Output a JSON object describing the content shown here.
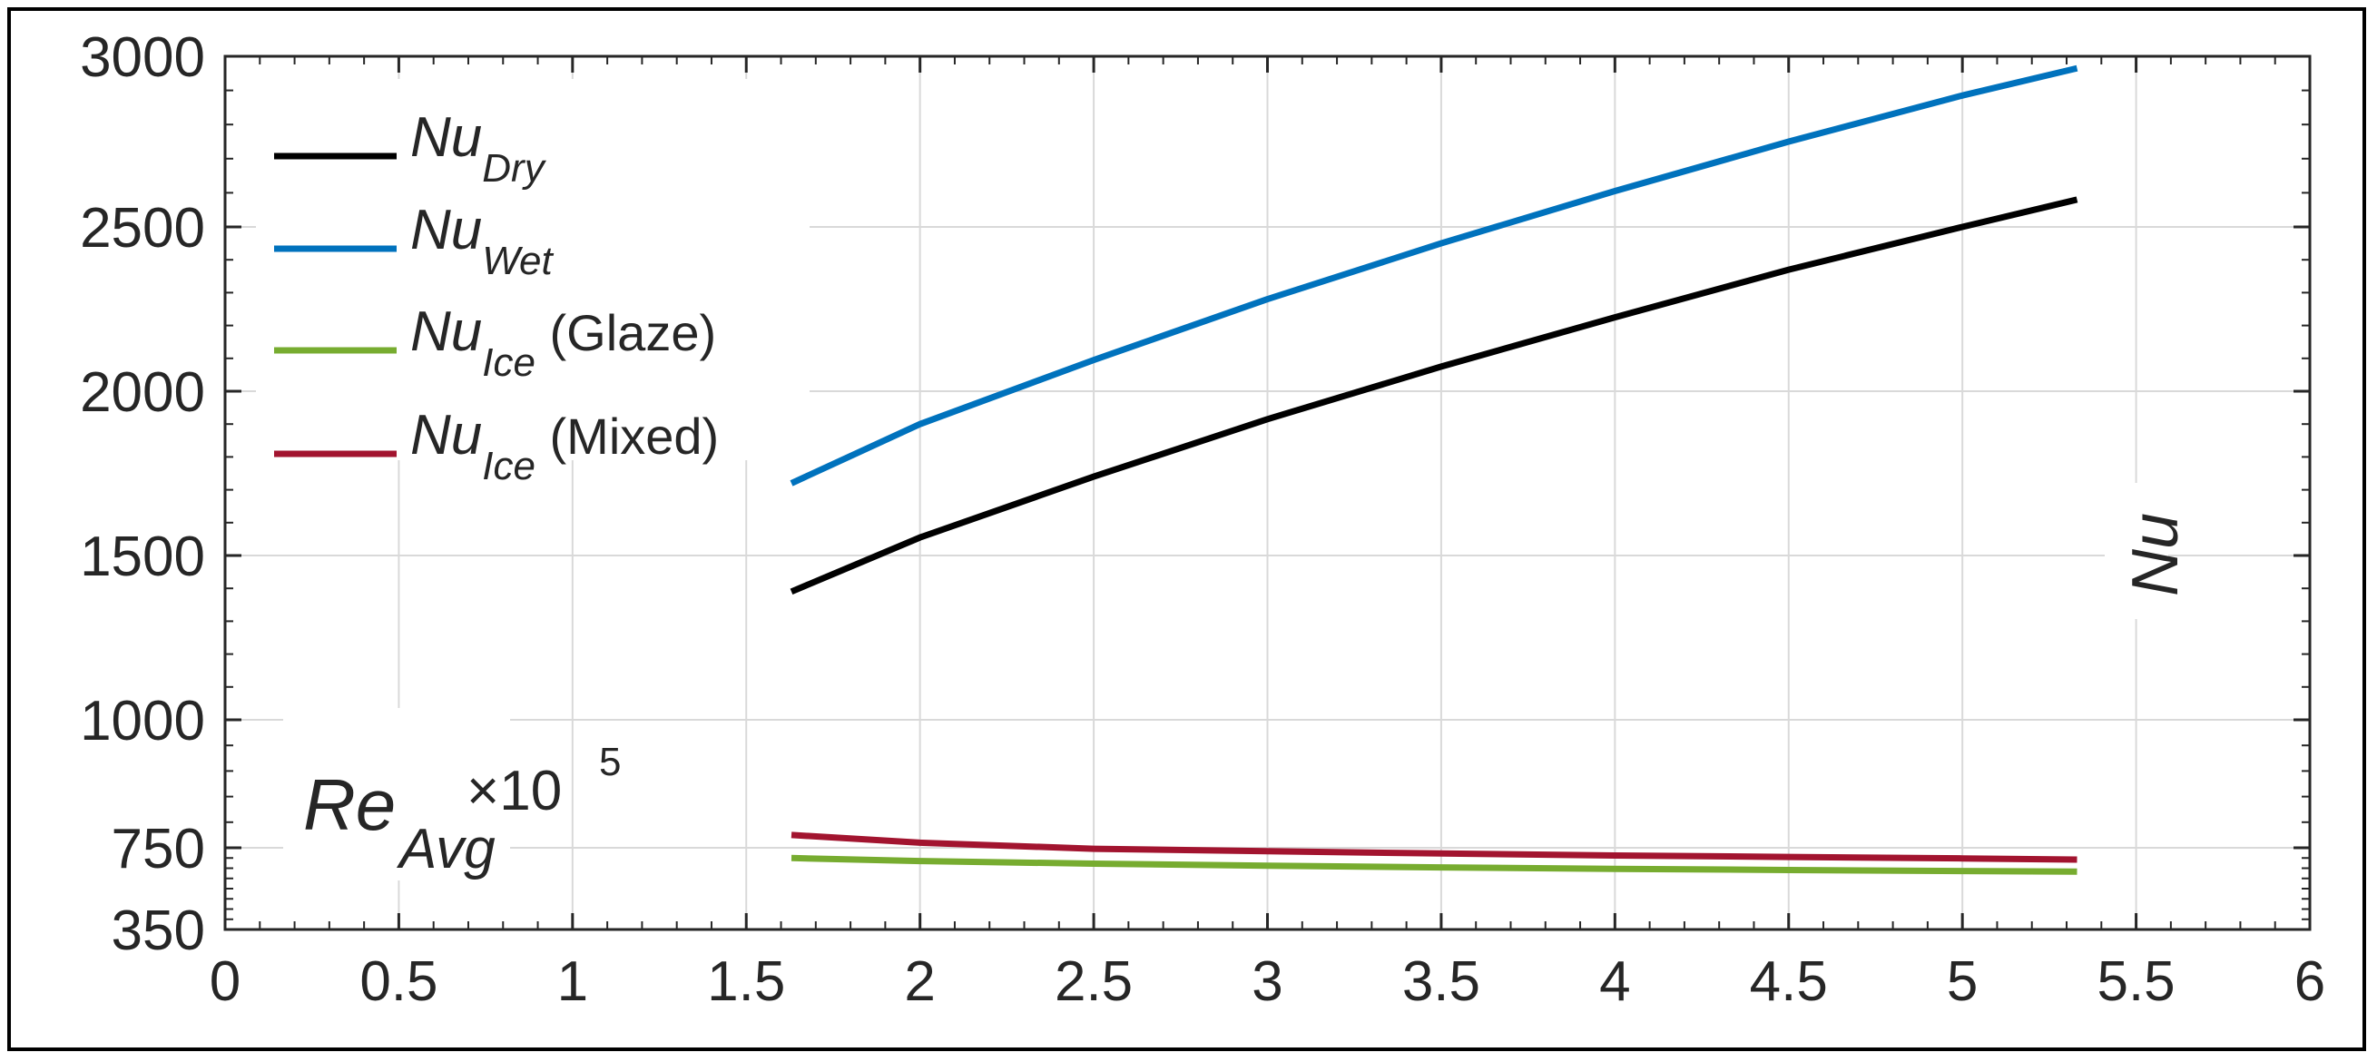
{
  "chart_data": {
    "type": "line",
    "x_ticks": [
      "0",
      "0.5",
      "1",
      "1.5",
      "2",
      "2.5",
      "3",
      "3.5",
      "4",
      "4.5",
      "5",
      "5.5",
      "6"
    ],
    "y_ticks": [
      "350",
      "750",
      "1000",
      "1500",
      "2000",
      "2500",
      "3000"
    ],
    "xlim": [
      0,
      6
    ],
    "ylim": [
      350,
      3000
    ],
    "grid": true,
    "legend_position": "top-left",
    "xlabel": {
      "main": "Re",
      "sub": "Avg",
      "multiplier": "×10",
      "exponent": "5"
    },
    "ylabel": "Nu",
    "series": [
      {
        "name": "Nu",
        "sub": "Dry",
        "suffix": "",
        "color": "#000000",
        "x": [
          1.63,
          2.0,
          2.5,
          3.0,
          3.5,
          4.0,
          4.5,
          5.0,
          5.33
        ],
        "y": [
          1390,
          1555,
          1740,
          1915,
          2075,
          2225,
          2370,
          2500,
          2580
        ]
      },
      {
        "name": "Nu",
        "sub": "Wet",
        "suffix": "",
        "color": "#0072BD",
        "x": [
          1.63,
          2.0,
          2.5,
          3.0,
          3.5,
          4.0,
          4.5,
          5.0,
          5.33
        ],
        "y": [
          1720,
          1900,
          2095,
          2280,
          2450,
          2605,
          2750,
          2885,
          2965
        ]
      },
      {
        "name": "Nu",
        "sub": "Ice",
        "suffix": " (Glaze)",
        "color": "#77AC30",
        "x": [
          1.63,
          2.0,
          2.5,
          3.0,
          3.5,
          4.0,
          4.5,
          5.0,
          5.33
        ],
        "y": [
          700,
          685,
          672,
          662,
          654,
          647,
          641,
          636,
          633
        ]
      },
      {
        "name": "Nu",
        "sub": "Ice",
        "suffix": " (Mixed)",
        "color": "#A2142F",
        "x": [
          1.63,
          2.0,
          2.5,
          3.0,
          3.5,
          4.0,
          4.5,
          5.0,
          5.33
        ],
        "y": [
          775,
          760,
          745,
          733,
          722,
          712,
          705,
          698,
          692
        ]
      }
    ]
  }
}
